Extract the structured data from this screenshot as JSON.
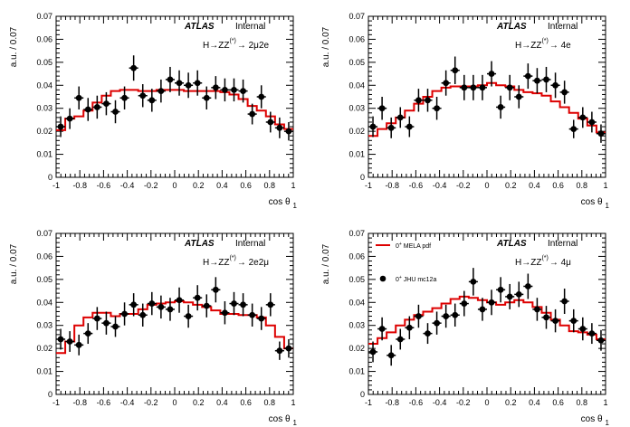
{
  "chart_data": [
    {
      "type": "line",
      "atlas": "ATLAS",
      "status": "Internal",
      "channel": {
        "pre": "H→ZZ",
        "sup": "(*)",
        "post": "→ 2μ2e"
      },
      "xlabel": "cos θ",
      "xlabel_sub": "1",
      "ylabel": "a.u. / 0.07",
      "xlim": [
        -1,
        1
      ],
      "ylim": [
        0,
        0.07
      ],
      "xticks": [
        "-1",
        "-0.8",
        "-0.6",
        "-0.4",
        "-0.2",
        "0",
        "0.2",
        "0.4",
        "0.6",
        "0.8",
        "1"
      ],
      "yticks": [
        "0",
        "0.01",
        "0.02",
        "0.03",
        "0.04",
        "0.05",
        "0.06",
        "0.07"
      ],
      "legend": null,
      "mc": [
        0.0205,
        0.0255,
        0.0265,
        0.029,
        0.0325,
        0.0355,
        0.0375,
        0.038,
        0.038,
        0.0375,
        0.0375,
        0.038,
        0.038,
        0.038,
        0.0375,
        0.0375,
        0.0375,
        0.0375,
        0.037,
        0.036,
        0.034,
        0.031,
        0.029,
        0.0265,
        0.023,
        0.021
      ],
      "data": [
        0.022,
        0.0255,
        0.0345,
        0.0295,
        0.0305,
        0.032,
        0.0285,
        0.0345,
        0.0475,
        0.0355,
        0.0335,
        0.0375,
        0.0425,
        0.041,
        0.04,
        0.041,
        0.0345,
        0.039,
        0.038,
        0.038,
        0.0375,
        0.0275,
        0.035,
        0.024,
        0.0215,
        0.02
      ],
      "err": [
        0.0045,
        0.0045,
        0.005,
        0.005,
        0.005,
        0.005,
        0.005,
        0.005,
        0.0055,
        0.005,
        0.005,
        0.005,
        0.0055,
        0.0055,
        0.0055,
        0.0055,
        0.005,
        0.005,
        0.005,
        0.005,
        0.005,
        0.0045,
        0.005,
        0.0045,
        0.0045,
        0.004
      ]
    },
    {
      "type": "line",
      "atlas": "ATLAS",
      "status": "Internal",
      "channel": {
        "pre": "H→ZZ",
        "sup": "(*)",
        "post": "→ 4e"
      },
      "xlabel": "cos θ",
      "xlabel_sub": "1",
      "ylabel": "a.u. / 0.07",
      "xlim": [
        -1,
        1
      ],
      "ylim": [
        0,
        0.07
      ],
      "xticks": [
        "-1",
        "-0.8",
        "-0.6",
        "-0.4",
        "-0.2",
        "0",
        "0.2",
        "0.4",
        "0.6",
        "0.8",
        "1"
      ],
      "yticks": [
        "0",
        "0.01",
        "0.02",
        "0.03",
        "0.04",
        "0.05",
        "0.06",
        "0.07"
      ],
      "legend": null,
      "mc": [
        0.018,
        0.021,
        0.0235,
        0.026,
        0.029,
        0.032,
        0.035,
        0.0375,
        0.039,
        0.0395,
        0.0395,
        0.0395,
        0.04,
        0.041,
        0.04,
        0.0395,
        0.038,
        0.037,
        0.0365,
        0.0355,
        0.033,
        0.0305,
        0.028,
        0.0255,
        0.0225,
        0.0195
      ],
      "data": [
        0.022,
        0.03,
        0.0215,
        0.026,
        0.022,
        0.0335,
        0.0335,
        0.03,
        0.041,
        0.0465,
        0.039,
        0.039,
        0.039,
        0.045,
        0.0305,
        0.039,
        0.035,
        0.044,
        0.042,
        0.0425,
        0.04,
        0.037,
        0.021,
        0.026,
        0.024,
        0.019
      ],
      "err": [
        0.0045,
        0.005,
        0.0045,
        0.0045,
        0.0045,
        0.005,
        0.005,
        0.005,
        0.0055,
        0.006,
        0.0055,
        0.0055,
        0.0055,
        0.0055,
        0.005,
        0.0055,
        0.005,
        0.0055,
        0.0055,
        0.0055,
        0.0055,
        0.005,
        0.004,
        0.0045,
        0.0045,
        0.004
      ]
    },
    {
      "type": "line",
      "atlas": "ATLAS",
      "status": "Internal",
      "channel": {
        "pre": "H→ZZ",
        "sup": "(*)",
        "post": "→ 2e2μ"
      },
      "xlabel": "cos θ",
      "xlabel_sub": "1",
      "ylabel": "a.u. / 0.07",
      "xlim": [
        -1,
        1
      ],
      "ylim": [
        0,
        0.07
      ],
      "xticks": [
        "-1",
        "-0.8",
        "-0.6",
        "-0.4",
        "-0.2",
        "0",
        "0.2",
        "0.4",
        "0.6",
        "0.8",
        "1"
      ],
      "yticks": [
        "0",
        "0.01",
        "0.02",
        "0.03",
        "0.04",
        "0.05",
        "0.06",
        "0.07"
      ],
      "legend": null,
      "mc": [
        0.018,
        0.023,
        0.03,
        0.0335,
        0.0355,
        0.0355,
        0.034,
        0.035,
        0.035,
        0.037,
        0.039,
        0.0395,
        0.04,
        0.0405,
        0.04,
        0.039,
        0.038,
        0.0365,
        0.035,
        0.035,
        0.0345,
        0.0345,
        0.0335,
        0.03,
        0.025,
        0.02
      ],
      "data": [
        0.024,
        0.023,
        0.0215,
        0.0265,
        0.033,
        0.031,
        0.0295,
        0.035,
        0.039,
        0.0345,
        0.0395,
        0.038,
        0.037,
        0.041,
        0.034,
        0.042,
        0.0385,
        0.0455,
        0.0355,
        0.0395,
        0.039,
        0.0345,
        0.033,
        0.039,
        0.019,
        0.02
      ],
      "err": [
        0.0045,
        0.0045,
        0.0045,
        0.0045,
        0.005,
        0.005,
        0.0045,
        0.005,
        0.005,
        0.005,
        0.005,
        0.005,
        0.005,
        0.0055,
        0.005,
        0.0055,
        0.005,
        0.0055,
        0.005,
        0.005,
        0.005,
        0.005,
        0.005,
        0.005,
        0.004,
        0.004
      ]
    },
    {
      "type": "line",
      "atlas": "ATLAS",
      "status": "Internal",
      "channel": {
        "pre": "H→ZZ",
        "sup": "(*)",
        "post": "→ 4μ"
      },
      "xlabel": "cos θ",
      "xlabel_sub": "1",
      "ylabel": "a.u. / 0.07",
      "xlim": [
        -1,
        1
      ],
      "ylim": [
        0,
        0.07
      ],
      "xticks": [
        "-1",
        "-0.8",
        "-0.6",
        "-0.4",
        "-0.2",
        "0",
        "0.2",
        "0.4",
        "0.6",
        "0.8",
        "1"
      ],
      "yticks": [
        "0",
        "0.01",
        "0.02",
        "0.03",
        "0.04",
        "0.05",
        "0.06",
        "0.07"
      ],
      "legend": {
        "mc": {
          "text": "0",
          "sup": "+",
          "rest": " MELA pdf"
        },
        "data": {
          "text": "0",
          "sup": "+",
          "rest": " JHU mc12a"
        }
      },
      "mc": [
        0.022,
        0.0245,
        0.027,
        0.03,
        0.0325,
        0.0345,
        0.036,
        0.0375,
        0.0395,
        0.0415,
        0.0425,
        0.042,
        0.041,
        0.04,
        0.039,
        0.04,
        0.041,
        0.04,
        0.038,
        0.0355,
        0.0325,
        0.03,
        0.0275,
        0.027,
        0.026,
        0.024
      ],
      "data": [
        0.0185,
        0.0285,
        0.017,
        0.024,
        0.029,
        0.034,
        0.0265,
        0.031,
        0.034,
        0.0345,
        0.0395,
        0.049,
        0.037,
        0.04,
        0.0455,
        0.0425,
        0.0435,
        0.047,
        0.037,
        0.0335,
        0.032,
        0.0405,
        0.032,
        0.0285,
        0.0265,
        0.0235
      ],
      "err": [
        0.0045,
        0.005,
        0.0045,
        0.0045,
        0.005,
        0.005,
        0.0045,
        0.005,
        0.005,
        0.005,
        0.0055,
        0.006,
        0.005,
        0.0055,
        0.0055,
        0.0055,
        0.0055,
        0.0055,
        0.005,
        0.005,
        0.005,
        0.0055,
        0.005,
        0.005,
        0.0045,
        0.0045
      ]
    }
  ],
  "colors": {
    "mc": "#dd0000",
    "data": "#000000",
    "axis": "#000000"
  }
}
